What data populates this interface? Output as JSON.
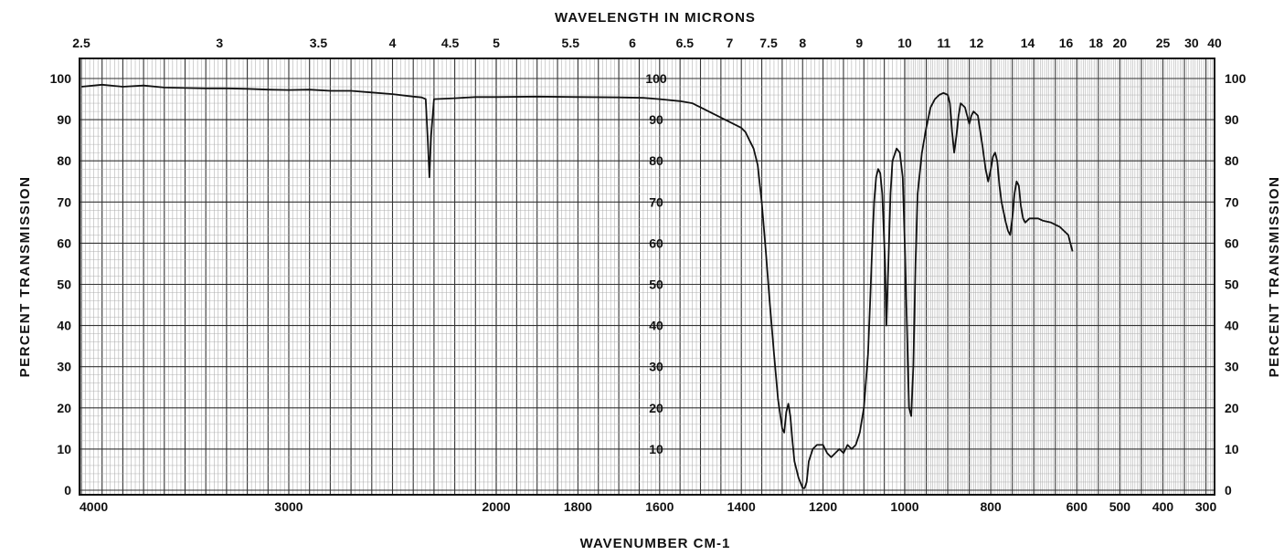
{
  "chart_data": {
    "type": "line",
    "title": "WAVELENGTH IN MICRONS",
    "xlabel": "WAVENUMBER CM-1",
    "ylabel": "PERCENT TRANSMISSION",
    "ylabel_right": "PERCENT TRANSMISSION",
    "xlim": [
      4000,
      280
    ],
    "ylim": [
      0,
      105
    ],
    "grid": true,
    "x_ticks": [
      {
        "value": 4000,
        "label": "4000"
      },
      {
        "value": 3000,
        "label": "3000"
      },
      {
        "value": 2000,
        "label": "2000"
      },
      {
        "value": 1800,
        "label": "1800"
      },
      {
        "value": 1600,
        "label": "1600"
      },
      {
        "value": 1400,
        "label": "1400"
      },
      {
        "value": 1200,
        "label": "1200"
      },
      {
        "value": 1000,
        "label": "1000"
      },
      {
        "value": 800,
        "label": "800"
      },
      {
        "value": 600,
        "label": "600"
      },
      {
        "value": 500,
        "label": "500"
      },
      {
        "value": 400,
        "label": "400"
      },
      {
        "value": 300,
        "label": "300"
      }
    ],
    "micron_ticks": [
      {
        "value": 2.5,
        "label": "2.5"
      },
      {
        "value": 3,
        "label": "3"
      },
      {
        "value": 3.5,
        "label": "3.5"
      },
      {
        "value": 4,
        "label": "4"
      },
      {
        "value": 4.5,
        "label": "4.5"
      },
      {
        "value": 5,
        "label": "5"
      },
      {
        "value": 5.5,
        "label": "5.5"
      },
      {
        "value": 6,
        "label": "6"
      },
      {
        "value": 6.5,
        "label": "6.5"
      },
      {
        "value": 7,
        "label": "7"
      },
      {
        "value": 7.5,
        "label": "7.5"
      },
      {
        "value": 8,
        "label": "8"
      },
      {
        "value": 9,
        "label": "9"
      },
      {
        "value": 10,
        "label": "10"
      },
      {
        "value": 11,
        "label": "11"
      },
      {
        "value": 12,
        "label": "12"
      },
      {
        "value": 14,
        "label": "14"
      },
      {
        "value": 16,
        "label": "16"
      },
      {
        "value": 18,
        "label": "18"
      },
      {
        "value": 20,
        "label": "20"
      },
      {
        "value": 25,
        "label": "25"
      },
      {
        "value": 30,
        "label": "30"
      },
      {
        "value": 40,
        "label": "40"
      }
    ],
    "y_ticks": [
      0,
      10,
      20,
      30,
      40,
      50,
      60,
      70,
      80,
      90,
      100
    ],
    "mid_y_ticks": [
      10,
      20,
      30,
      40,
      50,
      60,
      70,
      80,
      90,
      100
    ],
    "series": [
      {
        "color": "#111111",
        "points": [
          [
            4000,
            98
          ],
          [
            3900,
            98.5
          ],
          [
            3800,
            98
          ],
          [
            3700,
            98.3
          ],
          [
            3600,
            97.8
          ],
          [
            3500,
            97.7
          ],
          [
            3400,
            97.6
          ],
          [
            3300,
            97.6
          ],
          [
            3200,
            97.5
          ],
          [
            3100,
            97.3
          ],
          [
            3000,
            97.2
          ],
          [
            2900,
            97.3
          ],
          [
            2800,
            97
          ],
          [
            2700,
            97
          ],
          [
            2600,
            96.6
          ],
          [
            2500,
            96.2
          ],
          [
            2400,
            95.6
          ],
          [
            2360,
            95.4
          ],
          [
            2340,
            95
          ],
          [
            2330,
            85
          ],
          [
            2322,
            76
          ],
          [
            2314,
            86
          ],
          [
            2300,
            95
          ],
          [
            2200,
            95.2
          ],
          [
            2100,
            95.5
          ],
          [
            2000,
            95.5
          ],
          [
            1900,
            95.6
          ],
          [
            1800,
            95.5
          ],
          [
            1700,
            95.4
          ],
          [
            1640,
            95.3
          ],
          [
            1600,
            95
          ],
          [
            1550,
            94.5
          ],
          [
            1520,
            94
          ],
          [
            1500,
            93
          ],
          [
            1480,
            92
          ],
          [
            1460,
            91
          ],
          [
            1440,
            90
          ],
          [
            1420,
            89
          ],
          [
            1400,
            88
          ],
          [
            1390,
            87
          ],
          [
            1380,
            85
          ],
          [
            1370,
            83
          ],
          [
            1360,
            79
          ],
          [
            1350,
            70
          ],
          [
            1340,
            58
          ],
          [
            1330,
            45
          ],
          [
            1320,
            33
          ],
          [
            1310,
            22
          ],
          [
            1300,
            15
          ],
          [
            1295,
            14
          ],
          [
            1290,
            19
          ],
          [
            1285,
            21
          ],
          [
            1280,
            18
          ],
          [
            1275,
            12
          ],
          [
            1270,
            7
          ],
          [
            1260,
            3
          ],
          [
            1250,
            0.5
          ],
          [
            1245,
            0.5
          ],
          [
            1240,
            2
          ],
          [
            1235,
            7
          ],
          [
            1225,
            10
          ],
          [
            1215,
            11
          ],
          [
            1200,
            11
          ],
          [
            1190,
            9
          ],
          [
            1180,
            8
          ],
          [
            1170,
            9
          ],
          [
            1160,
            10
          ],
          [
            1150,
            9
          ],
          [
            1140,
            11
          ],
          [
            1130,
            10
          ],
          [
            1120,
            11
          ],
          [
            1110,
            14
          ],
          [
            1100,
            20
          ],
          [
            1090,
            33
          ],
          [
            1085,
            45
          ],
          [
            1080,
            58
          ],
          [
            1075,
            70
          ],
          [
            1070,
            76
          ],
          [
            1065,
            78
          ],
          [
            1060,
            77
          ],
          [
            1055,
            72
          ],
          [
            1048,
            55
          ],
          [
            1045,
            40
          ],
          [
            1040,
            55
          ],
          [
            1035,
            72
          ],
          [
            1030,
            80
          ],
          [
            1020,
            83
          ],
          [
            1012,
            82
          ],
          [
            1005,
            76
          ],
          [
            1000,
            60
          ],
          [
            995,
            40
          ],
          [
            990,
            20
          ],
          [
            985,
            18
          ],
          [
            980,
            30
          ],
          [
            975,
            55
          ],
          [
            970,
            72
          ],
          [
            960,
            82
          ],
          [
            950,
            88
          ],
          [
            940,
            93
          ],
          [
            930,
            95
          ],
          [
            920,
            96
          ],
          [
            910,
            96.5
          ],
          [
            900,
            96
          ],
          [
            895,
            94
          ],
          [
            890,
            87
          ],
          [
            885,
            82
          ],
          [
            880,
            86
          ],
          [
            875,
            91
          ],
          [
            870,
            94
          ],
          [
            860,
            93
          ],
          [
            855,
            91
          ],
          [
            850,
            89
          ],
          [
            845,
            91
          ],
          [
            840,
            92
          ],
          [
            830,
            91
          ],
          [
            820,
            84
          ],
          [
            812,
            78
          ],
          [
            806,
            75
          ],
          [
            800,
            78
          ],
          [
            795,
            81
          ],
          [
            790,
            82
          ],
          [
            785,
            80
          ],
          [
            780,
            74
          ],
          [
            775,
            70
          ],
          [
            765,
            65
          ],
          [
            760,
            63
          ],
          [
            755,
            62
          ],
          [
            750,
            66
          ],
          [
            745,
            72
          ],
          [
            740,
            75
          ],
          [
            735,
            74
          ],
          [
            730,
            69
          ],
          [
            725,
            66
          ],
          [
            720,
            65
          ],
          [
            710,
            66
          ],
          [
            700,
            66
          ],
          [
            690,
            66
          ],
          [
            680,
            65.5
          ],
          [
            660,
            65
          ],
          [
            640,
            64
          ],
          [
            620,
            62
          ],
          [
            610,
            58
          ]
        ]
      }
    ]
  }
}
